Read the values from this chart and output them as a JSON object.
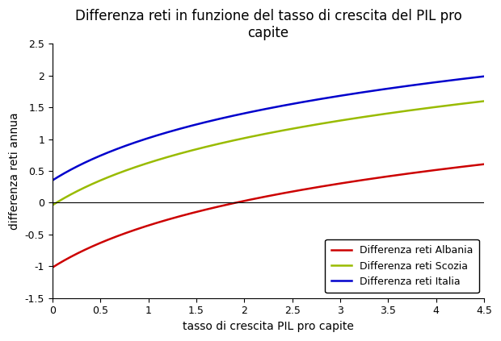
{
  "title": "Differenza reti in funzione del tasso di crescita del PIL pro\ncapite",
  "xlabel": "tasso di crescita PIL pro capite",
  "ylabel": "differenza reti annua",
  "xlim": [
    0,
    4.5
  ],
  "ylim": [
    -1.5,
    2.5
  ],
  "xticks": [
    0,
    0.5,
    1,
    1.5,
    2,
    2.5,
    3,
    3.5,
    4,
    4.5
  ],
  "yticks": [
    -1.5,
    -1.0,
    -0.5,
    0,
    0.5,
    1.0,
    1.5,
    2.0,
    2.5
  ],
  "series": [
    {
      "label": "Differenza reti Albania",
      "color": "#cc0000",
      "a": 0.953,
      "b": -1.02
    },
    {
      "label": "Differenza reti Scozia",
      "color": "#99bb00",
      "a": 0.96,
      "b": -0.04
    },
    {
      "label": "Differenza reti Italia",
      "color": "#0000cc",
      "a": 0.96,
      "b": 0.35
    }
  ],
  "background_color": "#ffffff",
  "title_fontsize": 12,
  "axis_label_fontsize": 10,
  "legend_fontsize": 9,
  "tick_fontsize": 9
}
